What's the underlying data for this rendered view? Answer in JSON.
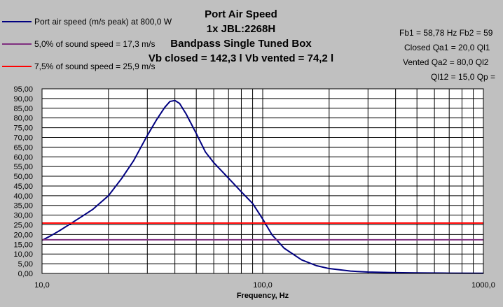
{
  "chart_data": {
    "type": "line",
    "title_lines": [
      "Port Air Speed",
      "1x JBL:2268H",
      "Bandpass Single Tuned Box",
      "Vb closed = 142,3 l    Vb vented = 74,2 l"
    ],
    "info_lines": [
      "Fb1 = 58,78 Hz  Fb2 = 59",
      "Closed Qa1 = 20,0  Ql1",
      "Vented Qa2 = 80,0  Ql2",
      "Ql12 = 15,0  Qp ="
    ],
    "xlabel": "Frequency, Hz",
    "x_scale": "log",
    "xlim": [
      10,
      1000
    ],
    "ylim": [
      0,
      95
    ],
    "x_tick_labels": [
      "10,0",
      "100,0",
      "1000,0"
    ],
    "y_tick_labels": [
      "0,00",
      "5,00",
      "10,00",
      "15,00",
      "20,00",
      "25,00",
      "30,00",
      "35,00",
      "40,00",
      "45,00",
      "50,00",
      "55,00",
      "60,00",
      "65,00",
      "70,00",
      "75,00",
      "80,00",
      "85,00",
      "90,00",
      "95,00"
    ],
    "grid": true,
    "legend_position": "top-left",
    "series": [
      {
        "name": "Port air speed (m/s peak) at 800,0 W",
        "color": "#000080",
        "x": [
          10,
          11,
          12,
          13,
          15,
          17,
          20,
          23,
          26,
          30,
          33,
          36,
          38,
          40,
          42,
          45,
          50,
          55,
          60,
          70,
          80,
          90,
          100,
          110,
          125,
          150,
          175,
          200,
          250,
          300,
          400,
          500,
          700,
          1000
        ],
        "y": [
          17,
          19.5,
          22,
          24.5,
          29,
          33,
          40,
          49,
          58,
          71,
          79,
          85.5,
          88.5,
          89,
          87.5,
          82,
          72,
          62.5,
          57,
          49,
          42,
          36,
          28,
          20,
          13,
          7,
          4,
          2.5,
          1.2,
          0.7,
          0.4,
          0.25,
          0.15,
          0.1
        ]
      },
      {
        "name": "5,0% of sound speed = 17,3 m/s",
        "color": "#7f2f7f",
        "x": [
          10,
          1000
        ],
        "y": [
          17.3,
          17.3
        ]
      },
      {
        "name": "7,5% of sound speed = 25,9 m/s",
        "color": "#ff0000",
        "x": [
          10,
          1000
        ],
        "y": [
          25.9,
          25.9
        ]
      }
    ]
  }
}
